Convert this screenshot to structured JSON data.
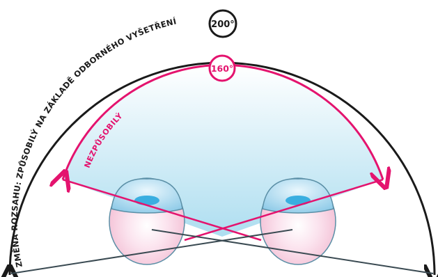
{
  "outer_angle": {
    "label": "200°",
    "caption": "ZMĚNA ROZSAHU: ZPŮSOBILÝ NA ZÁKLADĚ ODBORNÉHO VYŠETŘENÍ"
  },
  "inner_angle": {
    "label": "160°",
    "caption": "NEZPŮSOBILÝ"
  },
  "colors": {
    "outer_line": "#1a1a1a",
    "inner_line": "#e4136e",
    "field_fill_top": "#ffffff",
    "field_fill_bottom": "#a9dcef",
    "sight_lines": "#3a4a52",
    "eye_fill": "#f7c9dc",
    "cornea": "#7ec3e6",
    "iris": "#3aaee0"
  },
  "icons": {
    "left_eye": "eye-icon",
    "right_eye": "eye-icon"
  }
}
